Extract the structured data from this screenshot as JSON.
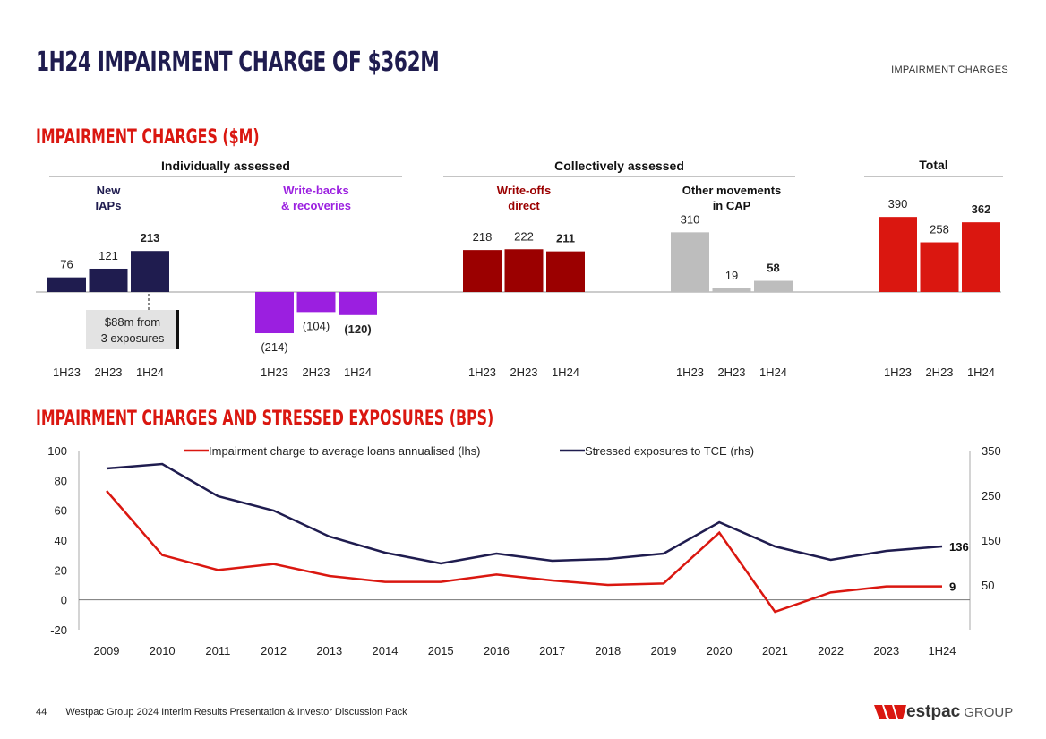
{
  "header": {
    "title": "1H24 IMPAIRMENT CHARGE OF $362M",
    "section": "IMPAIRMENT CHARGES"
  },
  "footer": {
    "page": "44",
    "text": "Westpac Group 2024 Interim Results Presentation & Investor Discussion Pack",
    "logo": "Westpac GROUP"
  },
  "colors": {
    "navy": "#1f1c4f",
    "purple": "#9b1fe0",
    "darkred": "#9b0000",
    "grey": "#bdbdbd",
    "red": "#da1710"
  },
  "chart_data": [
    {
      "type": "bar",
      "title": "IMPAIRMENT CHARGES ($M)",
      "categories": [
        "1H23",
        "2H23",
        "1H24"
      ],
      "group_headers": [
        {
          "label": "Individually assessed"
        },
        {
          "label": "Collectively assessed"
        },
        {
          "label": "Total"
        }
      ],
      "series": [
        {
          "name": "New IAPs",
          "color": "#1f1c4f",
          "values": [
            76,
            121,
            213
          ],
          "labels": [
            "76",
            "121",
            "213"
          ]
        },
        {
          "name": "Write-backs & recoveries",
          "color": "#9b1fe0",
          "values": [
            -214,
            -104,
            -120
          ],
          "labels": [
            "(214)",
            "(104)",
            "(120)"
          ]
        },
        {
          "name": "Write-offs direct",
          "color": "#9b0000",
          "values": [
            218,
            222,
            211
          ],
          "labels": [
            "218",
            "222",
            "211"
          ]
        },
        {
          "name": "Other movements in CAP",
          "color": "#bdbdbd",
          "values": [
            310,
            19,
            58
          ],
          "labels": [
            "310",
            "19",
            "58"
          ]
        },
        {
          "name": "Total",
          "color": "#da1710",
          "values": [
            390,
            258,
            362
          ],
          "labels": [
            "390",
            "258",
            "362"
          ]
        }
      ],
      "series_titles": [
        [
          "New",
          "IAPs"
        ],
        [
          "Write-backs",
          "& recoveries"
        ],
        [
          "Write-offs",
          "direct"
        ],
        [
          "Other movements",
          "in CAP"
        ]
      ],
      "annotation": [
        "$88m from",
        "3 exposures"
      ]
    },
    {
      "type": "line",
      "title": "IMPAIRMENT CHARGES AND STRESSED EXPOSURES (BPS)",
      "x": [
        "2009",
        "2010",
        "2011",
        "2012",
        "2013",
        "2014",
        "2015",
        "2016",
        "2017",
        "2018",
        "2019",
        "2020",
        "2021",
        "2022",
        "2023",
        "1H24"
      ],
      "ylim_left": [
        -20,
        100
      ],
      "yticks_left": [
        "100",
        "80",
        "60",
        "40",
        "20",
        "0",
        "-20"
      ],
      "ylim_right": [
        -50,
        350
      ],
      "yticks_right": [
        "350",
        "250",
        "150",
        "50"
      ],
      "legend": "top",
      "series": [
        {
          "name": "Impairment charge to average loans annualised (lhs)",
          "axis": "left",
          "color": "#da1710",
          "values": [
            73,
            30,
            20,
            24,
            16,
            12,
            12,
            17,
            13,
            10,
            11,
            45,
            -8,
            5,
            9,
            9
          ],
          "end_label": "9"
        },
        {
          "name": "Stressed exposures to TCE (rhs)",
          "axis": "right",
          "color": "#1f1c4f",
          "values": [
            310,
            320,
            248,
            216,
            158,
            122,
            98,
            120,
            104,
            108,
            120,
            190,
            136,
            106,
            126,
            136
          ],
          "end_label": "136"
        }
      ]
    }
  ]
}
